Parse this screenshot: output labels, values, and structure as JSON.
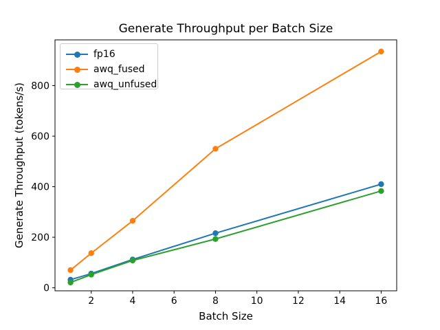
{
  "chart_data": {
    "type": "line",
    "title": "Generate Throughput per Batch Size",
    "xlabel": "Batch Size",
    "ylabel": "Generate Throughput (tokens/s)",
    "x": [
      1,
      2,
      4,
      8,
      16
    ],
    "series": [
      {
        "name": "fp16",
        "color": "#1f77b4",
        "values": [
          32,
          56,
          112,
          216,
          410
        ]
      },
      {
        "name": "awq_fused",
        "color": "#ff7f0e",
        "values": [
          70,
          137,
          265,
          550,
          935
        ]
      },
      {
        "name": "awq_unfused",
        "color": "#2ca02c",
        "values": [
          21,
          52,
          108,
          193,
          383
        ]
      }
    ],
    "xticks": [
      2,
      4,
      6,
      8,
      10,
      12,
      14,
      16
    ],
    "yticks": [
      0,
      200,
      400,
      600,
      800
    ],
    "xlim": [
      0.25,
      16.75
    ],
    "ylim": [
      -12,
      981
    ],
    "legend_position": "upper left",
    "grid": false,
    "background": "#ffffff",
    "axis_color": "#000000"
  }
}
